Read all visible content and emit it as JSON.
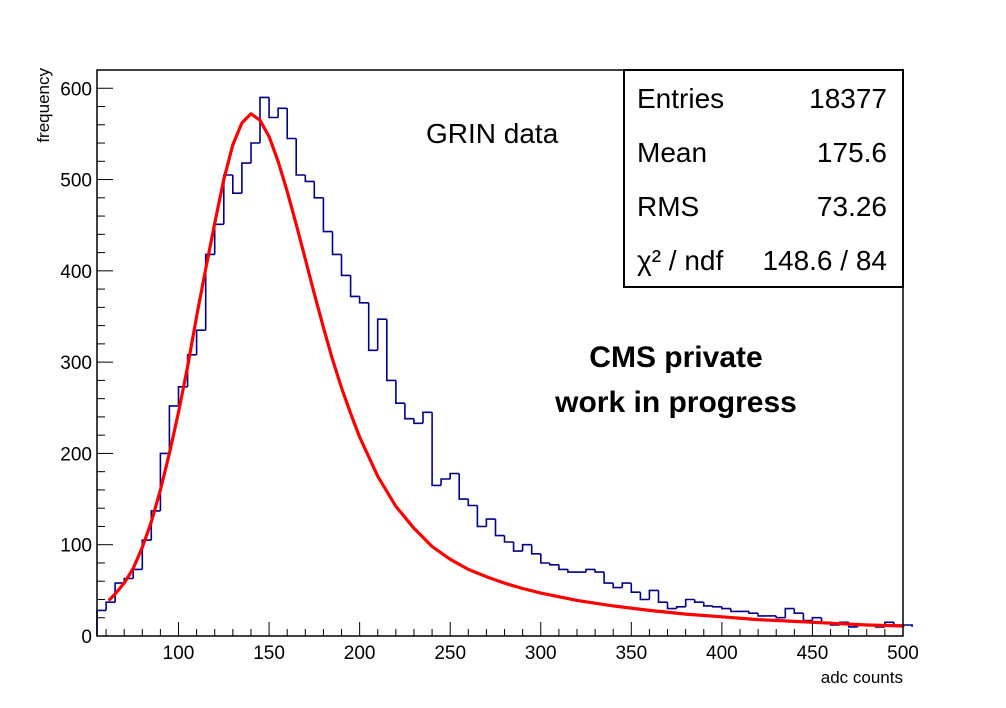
{
  "chart_data": {
    "type": "histogram",
    "xlabel": "adc counts",
    "ylabel": "frequency",
    "xlim": [
      55,
      500
    ],
    "ylim": [
      0,
      620
    ],
    "x_ticks": [
      100,
      150,
      200,
      250,
      300,
      350,
      400,
      450,
      500
    ],
    "y_ticks": [
      0,
      100,
      200,
      300,
      400,
      500,
      600
    ],
    "bin_width": 5,
    "series": [
      {
        "kind": "histogram",
        "color": "#00008b",
        "bin_start": 55,
        "values": [
          28,
          37,
          58,
          63,
          73,
          105,
          137,
          200,
          252,
          273,
          308,
          335,
          418,
          451,
          505,
          485,
          518,
          540,
          590,
          568,
          578,
          545,
          505,
          498,
          480,
          443,
          418,
          395,
          372,
          365,
          313,
          347,
          280,
          255,
          238,
          233,
          245,
          165,
          172,
          178,
          150,
          143,
          120,
          128,
          110,
          103,
          93,
          100,
          90,
          80,
          78,
          73,
          70,
          70,
          73,
          70,
          58,
          53,
          58,
          48,
          40,
          50,
          37,
          30,
          32,
          40,
          37,
          33,
          32,
          30,
          27,
          27,
          25,
          22,
          22,
          20,
          30,
          25,
          17,
          20,
          15,
          12,
          15,
          10,
          12,
          12,
          10,
          15,
          12,
          10,
          12
        ]
      },
      {
        "kind": "fit",
        "color": "#ff0000",
        "x": [
          62,
          65,
          70,
          75,
          80,
          85,
          90,
          95,
          100,
          105,
          110,
          115,
          120,
          125,
          130,
          135,
          140,
          145,
          150,
          155,
          160,
          165,
          170,
          175,
          180,
          185,
          190,
          195,
          200,
          210,
          220,
          230,
          240,
          250,
          260,
          270,
          280,
          290,
          300,
          320,
          340,
          360,
          380,
          400,
          420,
          440,
          460,
          480,
          500
        ],
        "y": [
          40,
          46,
          58,
          74,
          97,
          125,
          160,
          200,
          245,
          295,
          350,
          402,
          452,
          500,
          538,
          562,
          572,
          565,
          547,
          520,
          487,
          451,
          413,
          375,
          338,
          303,
          272,
          244,
          218,
          175,
          142,
          118,
          98,
          84,
          73,
          65,
          58,
          52,
          47,
          39,
          33,
          28,
          24,
          21,
          18,
          16,
          14,
          12,
          11
        ]
      }
    ],
    "stats": [
      {
        "label": "Entries",
        "value": "18377"
      },
      {
        "label": "Mean",
        "value": "175.6"
      },
      {
        "label": "RMS",
        "value": "73.26"
      }
    ],
    "chi2_label": "χ² / ndf",
    "chi2_value": "148.6 / 84",
    "annotations": {
      "grin": "GRIN data",
      "cms_line1": "CMS private",
      "cms_line2": "work in progress"
    }
  }
}
